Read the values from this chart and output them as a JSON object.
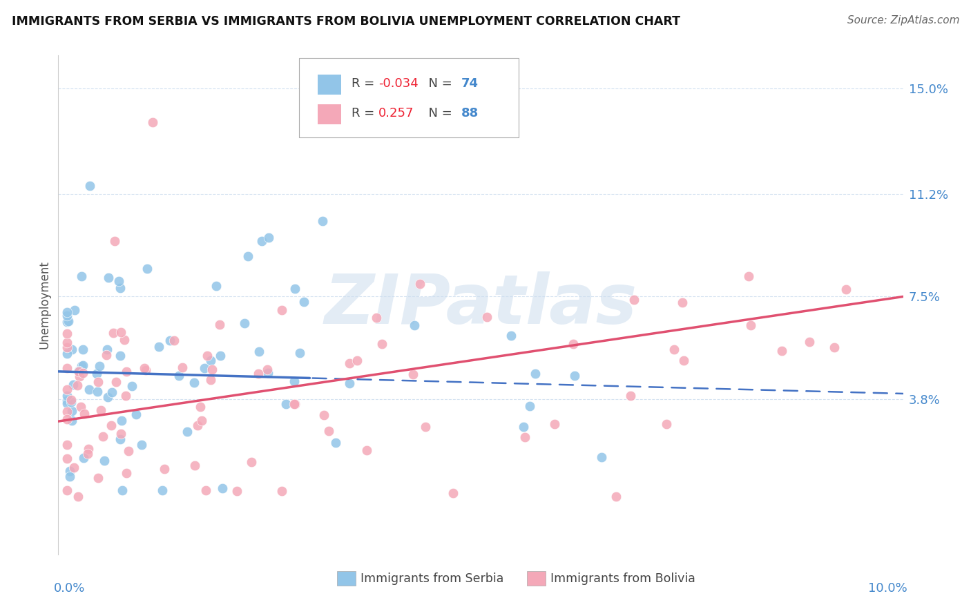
{
  "title": "IMMIGRANTS FROM SERBIA VS IMMIGRANTS FROM BOLIVIA UNEMPLOYMENT CORRELATION CHART",
  "source": "Source: ZipAtlas.com",
  "ylabel": "Unemployment",
  "serbia_R": -0.034,
  "serbia_N": 74,
  "bolivia_R": 0.257,
  "bolivia_N": 88,
  "serbia_color": "#92C5E8",
  "bolivia_color": "#F4A8B8",
  "serbia_line_color": "#4472C4",
  "bolivia_line_color": "#E05070",
  "r_color": "#EE2233",
  "n_color": "#4488CC",
  "xmin": 0.0,
  "xmax": 0.1,
  "ymin": -0.018,
  "ymax": 0.162,
  "ytick_positions": [
    0.038,
    0.075,
    0.112,
    0.15
  ],
  "ytick_labels": [
    "3.8%",
    "7.5%",
    "11.2%",
    "15.0%"
  ]
}
